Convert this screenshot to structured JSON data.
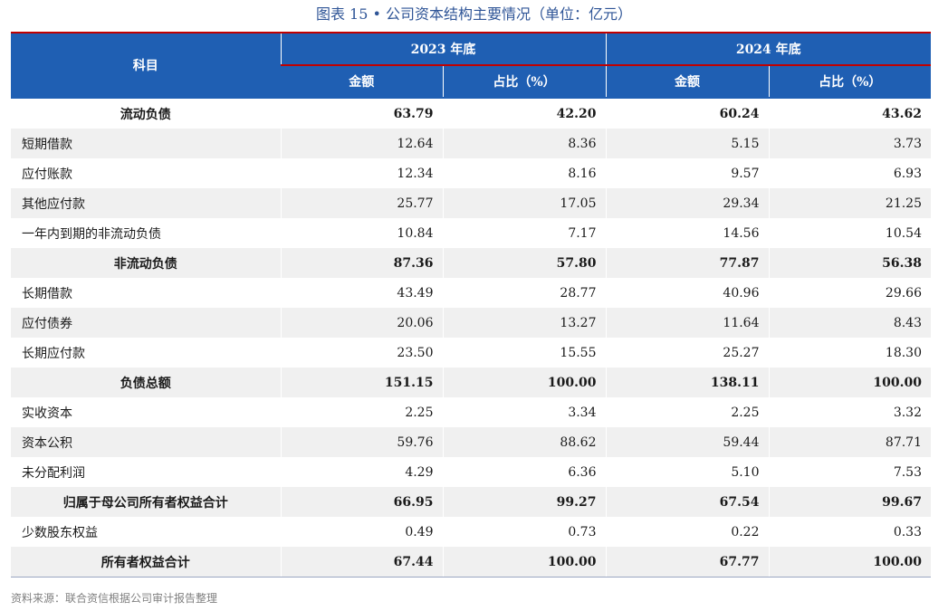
{
  "title": "图表 15 • 公司资本结构主要情况（单位：亿元）",
  "colors": {
    "header_bg": "#1f5fb3",
    "accent_line": "#c00000",
    "title": "#2f5597",
    "stripe": "#f0f0f0"
  },
  "header": {
    "subject": "科目",
    "year_2023": "2023 年底",
    "year_2024": "2024 年底",
    "amount_2023": "金额",
    "ratio_2023": "占比（%）",
    "amount_2024": "金额",
    "ratio_2024": "占比（%）"
  },
  "rows": [
    {
      "name": "流动负债",
      "a23": "63.79",
      "r23": "42.20",
      "a24": "60.24",
      "r24": "43.62"
    },
    {
      "name": "短期借款",
      "a23": "12.64",
      "r23": "8.36",
      "a24": "5.15",
      "r24": "3.73"
    },
    {
      "name": "应付账款",
      "a23": "12.34",
      "r23": "8.16",
      "a24": "9.57",
      "r24": "6.93"
    },
    {
      "name": "其他应付款",
      "a23": "25.77",
      "r23": "17.05",
      "a24": "29.34",
      "r24": "21.25"
    },
    {
      "name": "一年内到期的非流动负债",
      "a23": "10.84",
      "r23": "7.17",
      "a24": "14.56",
      "r24": "10.54"
    },
    {
      "name": "非流动负债",
      "a23": "87.36",
      "r23": "57.80",
      "a24": "77.87",
      "r24": "56.38"
    },
    {
      "name": "长期借款",
      "a23": "43.49",
      "r23": "28.77",
      "a24": "40.96",
      "r24": "29.66"
    },
    {
      "name": "应付债券",
      "a23": "20.06",
      "r23": "13.27",
      "a24": "11.64",
      "r24": "8.43"
    },
    {
      "name": "长期应付款",
      "a23": "23.50",
      "r23": "15.55",
      "a24": "25.27",
      "r24": "18.30"
    },
    {
      "name": "负债总额",
      "a23": "151.15",
      "r23": "100.00",
      "a24": "138.11",
      "r24": "100.00"
    },
    {
      "name": "实收资本",
      "a23": "2.25",
      "r23": "3.34",
      "a24": "2.25",
      "r24": "3.32"
    },
    {
      "name": "资本公积",
      "a23": "59.76",
      "r23": "88.62",
      "a24": "59.44",
      "r24": "87.71"
    },
    {
      "name": "未分配利润",
      "a23": "4.29",
      "r23": "6.36",
      "a24": "5.10",
      "r24": "7.53"
    },
    {
      "name": "归属于母公司所有者权益合计",
      "a23": "66.95",
      "r23": "99.27",
      "a24": "67.54",
      "r24": "99.67"
    },
    {
      "name": "少数股东权益",
      "a23": "0.49",
      "r23": "0.73",
      "a24": "0.22",
      "r24": "0.33"
    },
    {
      "name": "所有者权益合计",
      "a23": "67.44",
      "r23": "100.00",
      "a24": "67.77",
      "r24": "100.00"
    }
  ],
  "source": "资料来源：联合资信根据公司审计报告整理"
}
